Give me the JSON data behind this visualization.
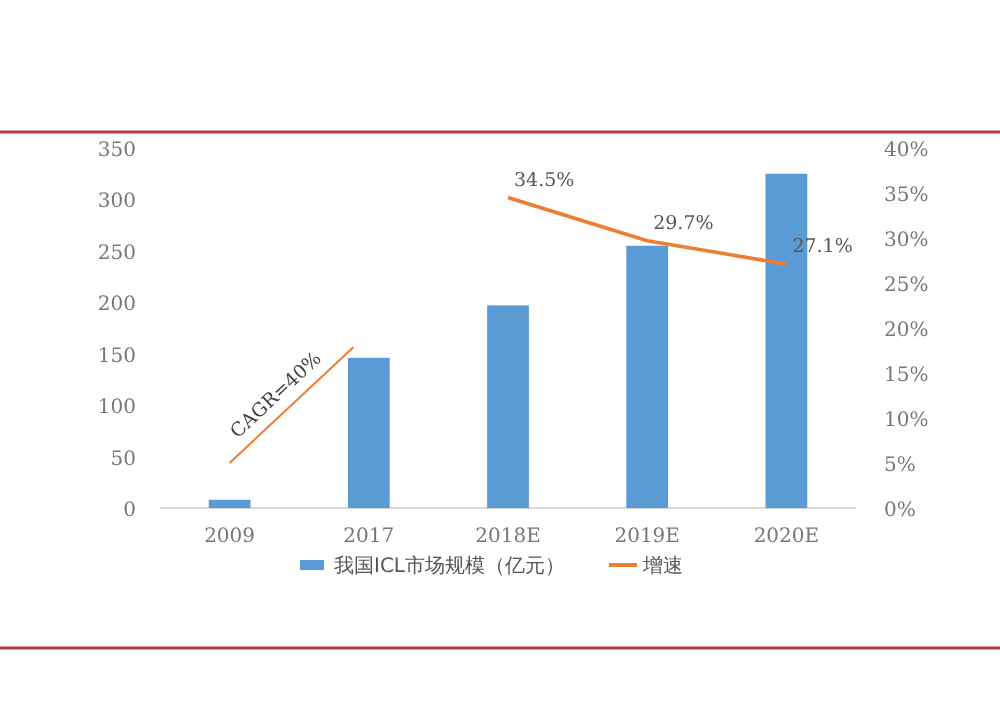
{
  "chart_data": {
    "type": "bar",
    "categories": [
      "2009",
      "2017",
      "2018E",
      "2019E",
      "2020E"
    ],
    "series": [
      {
        "name": "我国ICL市场规模（亿元）",
        "color": "#5b9bd5",
        "values": [
          8,
          146,
          197,
          255,
          325
        ]
      },
      {
        "name": "增速",
        "type": "line",
        "axis": "y2",
        "color": "#ed7d31",
        "values": [
          null,
          null,
          34.5,
          29.7,
          27.1
        ],
        "value_labels": [
          null,
          null,
          "34.5%",
          "29.7%",
          "27.1%"
        ]
      }
    ],
    "ylim": [
      0,
      350
    ],
    "yticks": [
      0,
      50,
      100,
      150,
      200,
      250,
      300,
      350
    ],
    "y2lim": [
      0,
      40
    ],
    "y2ticks": [
      {
        "value": 0,
        "label": "0%"
      },
      {
        "value": 5,
        "label": "5%"
      },
      {
        "value": 10,
        "label": "10%"
      },
      {
        "value": 15,
        "label": "15%"
      },
      {
        "value": 20,
        "label": "20%"
      },
      {
        "value": 25,
        "label": "25%"
      },
      {
        "value": 30,
        "label": "30%"
      },
      {
        "value": 35,
        "label": "35%"
      },
      {
        "value": 40,
        "label": "40%"
      }
    ],
    "annotations": [
      "CAGR=40%"
    ],
    "legend": "bottom"
  }
}
